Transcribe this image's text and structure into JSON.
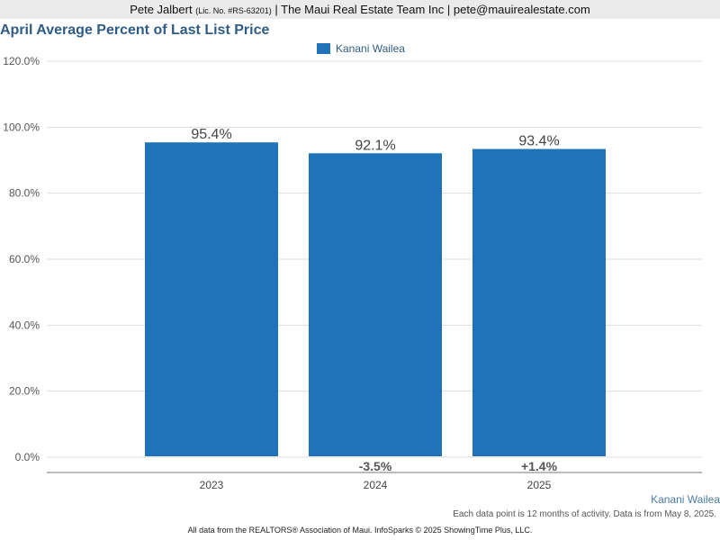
{
  "header": {
    "agent": "Pete Jalbert",
    "license": "(Lic. No. #RS-63201)",
    "rest": "| The Maui Real Estate Team Inc | pete@mauirealestate.com"
  },
  "colors": {
    "bar": "#1f74b9",
    "title": "#2f5c87",
    "grid": "#dddddd"
  },
  "chart_data": {
    "type": "bar",
    "title": "April Average Percent of Last List Price",
    "categories": [
      "2023",
      "2024",
      "2025"
    ],
    "series": [
      {
        "name": "Kanani Wailea",
        "values": [
          95.4,
          92.1,
          93.4
        ]
      }
    ],
    "data_labels": [
      "95.4%",
      "92.1%",
      "93.4%"
    ],
    "change_labels": [
      "",
      "-3.5%",
      "+1.4%"
    ],
    "ylim": [
      0,
      120
    ],
    "yticks": [
      0,
      20,
      40,
      60,
      80,
      100,
      120
    ],
    "ytick_labels": [
      "0.0%",
      "20.0%",
      "40.0%",
      "60.0%",
      "80.0%",
      "100.0%",
      "120.0%"
    ],
    "grid": true,
    "legend_position": "top-center"
  },
  "footer": {
    "series_label": "Kanani Wailea",
    "note": "Each data point is 12 months of activity. Data is from May 8, 2025.",
    "source": "All data from the REALTORS® Association of Maui. InfoSparks © 2025 ShowingTime Plus, LLC."
  }
}
